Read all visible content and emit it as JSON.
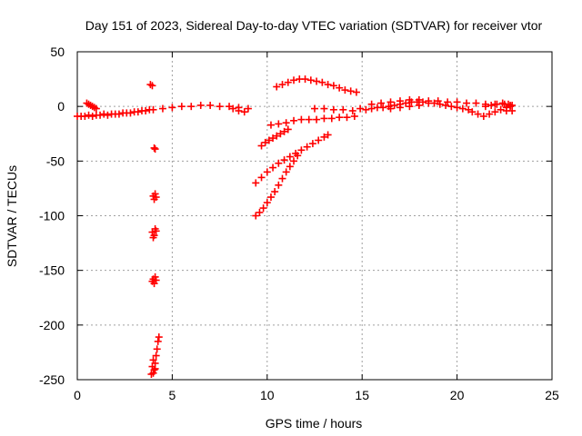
{
  "chart_data": {
    "type": "scatter",
    "title": "Day 151 of 2023, Sidereal Day-to-day VTEC variation (SDTVAR) for receiver vtor",
    "xlabel": "GPS time / hours",
    "ylabel": "SDTVAR / TECUs",
    "xlim": [
      0,
      25
    ],
    "ylim": [
      -250,
      50
    ],
    "xticks": [
      0,
      5,
      10,
      15,
      20,
      25
    ],
    "yticks": [
      -250,
      -200,
      -150,
      -100,
      -50,
      0,
      50
    ],
    "grid": true,
    "marker": "+",
    "series": [
      {
        "name": "SDTVAR",
        "color": "#ff0000",
        "points": [
          [
            0.0,
            -9
          ],
          [
            0.2,
            -9
          ],
          [
            0.4,
            -9
          ],
          [
            0.6,
            -8
          ],
          [
            0.8,
            -9
          ],
          [
            1.0,
            -8
          ],
          [
            1.2,
            -8
          ],
          [
            1.4,
            -7
          ],
          [
            1.6,
            -8
          ],
          [
            1.8,
            -7
          ],
          [
            2.0,
            -7
          ],
          [
            2.2,
            -7
          ],
          [
            2.4,
            -6
          ],
          [
            2.6,
            -6
          ],
          [
            2.8,
            -6
          ],
          [
            3.0,
            -5
          ],
          [
            3.2,
            -5
          ],
          [
            3.4,
            -4
          ],
          [
            3.6,
            -4
          ],
          [
            3.8,
            -3
          ],
          [
            4.0,
            -3
          ],
          [
            0.5,
            3
          ],
          [
            0.6,
            2
          ],
          [
            0.7,
            1
          ],
          [
            0.8,
            0
          ],
          [
            0.9,
            -1
          ],
          [
            1.0,
            -2
          ],
          [
            3.85,
            20
          ],
          [
            3.95,
            19
          ],
          [
            4.05,
            -38
          ],
          [
            4.1,
            -39
          ],
          [
            4.0,
            -82
          ],
          [
            4.05,
            -85
          ],
          [
            4.1,
            -80
          ],
          [
            4.15,
            -83
          ],
          [
            3.95,
            -115
          ],
          [
            4.0,
            -120
          ],
          [
            4.05,
            -118
          ],
          [
            4.1,
            -112
          ],
          [
            4.15,
            -114
          ],
          [
            3.95,
            -160
          ],
          [
            4.0,
            -158
          ],
          [
            4.05,
            -162
          ],
          [
            4.1,
            -156
          ],
          [
            4.15,
            -159
          ],
          [
            3.9,
            -245
          ],
          [
            3.95,
            -238
          ],
          [
            4.0,
            -232
          ],
          [
            4.05,
            -241
          ],
          [
            4.1,
            -235
          ],
          [
            4.15,
            -228
          ],
          [
            4.2,
            -222
          ],
          [
            4.25,
            -215
          ],
          [
            4.3,
            -211
          ],
          [
            4.0,
            -244
          ],
          [
            4.1,
            -240
          ],
          [
            4.5,
            -2
          ],
          [
            5.0,
            -1
          ],
          [
            5.5,
            0
          ],
          [
            6.0,
            0
          ],
          [
            6.5,
            1
          ],
          [
            7.0,
            1
          ],
          [
            7.5,
            0
          ],
          [
            8.0,
            0
          ],
          [
            8.5,
            -1
          ],
          [
            9.0,
            -2
          ],
          [
            8.2,
            -2
          ],
          [
            8.5,
            -4
          ],
          [
            8.8,
            -5
          ],
          [
            9.4,
            -100
          ],
          [
            9.6,
            -97
          ],
          [
            9.8,
            -93
          ],
          [
            10.0,
            -88
          ],
          [
            10.2,
            -83
          ],
          [
            10.4,
            -78
          ],
          [
            10.6,
            -72
          ],
          [
            10.8,
            -66
          ],
          [
            11.0,
            -60
          ],
          [
            11.2,
            -55
          ],
          [
            11.4,
            -50
          ],
          [
            11.6,
            -45
          ],
          [
            9.4,
            -70
          ],
          [
            9.7,
            -65
          ],
          [
            10.0,
            -60
          ],
          [
            10.3,
            -56
          ],
          [
            10.6,
            -52
          ],
          [
            10.9,
            -49
          ],
          [
            11.2,
            -46
          ],
          [
            11.5,
            -43
          ],
          [
            11.8,
            -40
          ],
          [
            12.1,
            -37
          ],
          [
            12.4,
            -34
          ],
          [
            12.7,
            -31
          ],
          [
            13.0,
            -28
          ],
          [
            13.2,
            -26
          ],
          [
            9.7,
            -36
          ],
          [
            9.9,
            -33
          ],
          [
            10.1,
            -31
          ],
          [
            10.3,
            -29
          ],
          [
            10.5,
            -27
          ],
          [
            10.7,
            -25
          ],
          [
            10.9,
            -23
          ],
          [
            11.1,
            -21
          ],
          [
            10.2,
            -17
          ],
          [
            10.6,
            -16
          ],
          [
            11.0,
            -15
          ],
          [
            11.4,
            -13
          ],
          [
            11.8,
            -12
          ],
          [
            12.2,
            -12
          ],
          [
            12.6,
            -12
          ],
          [
            13.0,
            -11
          ],
          [
            13.4,
            -11
          ],
          [
            13.8,
            -10
          ],
          [
            14.2,
            -10
          ],
          [
            14.6,
            -9
          ],
          [
            10.5,
            18
          ],
          [
            10.8,
            20
          ],
          [
            11.1,
            22
          ],
          [
            11.4,
            24
          ],
          [
            11.7,
            25
          ],
          [
            12.0,
            25
          ],
          [
            12.3,
            24
          ],
          [
            12.6,
            23
          ],
          [
            12.9,
            22
          ],
          [
            13.2,
            20
          ],
          [
            13.5,
            19
          ],
          [
            13.8,
            17
          ],
          [
            14.1,
            15
          ],
          [
            14.4,
            14
          ],
          [
            14.7,
            13
          ],
          [
            12.5,
            -2
          ],
          [
            13.0,
            -2
          ],
          [
            13.5,
            -3
          ],
          [
            14.0,
            -3
          ],
          [
            14.5,
            -4
          ],
          [
            14.9,
            -2
          ],
          [
            15.2,
            -3
          ],
          [
            15.5,
            -2
          ],
          [
            15.8,
            -1
          ],
          [
            16.1,
            -1
          ],
          [
            16.4,
            0
          ],
          [
            16.7,
            1
          ],
          [
            17.0,
            2
          ],
          [
            17.3,
            3
          ],
          [
            17.6,
            4
          ],
          [
            17.9,
            4
          ],
          [
            18.2,
            4
          ],
          [
            18.5,
            3
          ],
          [
            18.8,
            3
          ],
          [
            19.1,
            2
          ],
          [
            19.4,
            1
          ],
          [
            19.7,
            0
          ],
          [
            20.0,
            -1
          ],
          [
            20.3,
            -2
          ],
          [
            20.6,
            -3
          ],
          [
            15.5,
            2
          ],
          [
            16.0,
            3
          ],
          [
            16.5,
            4
          ],
          [
            17.0,
            5
          ],
          [
            17.5,
            6
          ],
          [
            18.0,
            6
          ],
          [
            18.5,
            5
          ],
          [
            19.0,
            5
          ],
          [
            19.5,
            4
          ],
          [
            20.0,
            4
          ],
          [
            20.5,
            3
          ],
          [
            21.0,
            3
          ],
          [
            21.5,
            2
          ],
          [
            22.0,
            2
          ],
          [
            22.5,
            2
          ],
          [
            22.8,
            1
          ],
          [
            16.5,
            -2
          ],
          [
            17.0,
            -1
          ],
          [
            17.5,
            0
          ],
          [
            18.0,
            1
          ],
          [
            20.8,
            -5
          ],
          [
            21.1,
            -7
          ],
          [
            21.4,
            -9
          ],
          [
            21.7,
            -7
          ],
          [
            22.0,
            -5
          ],
          [
            22.3,
            -3
          ],
          [
            22.6,
            -1
          ],
          [
            22.8,
            0
          ],
          [
            21.5,
            0
          ],
          [
            21.8,
            1
          ],
          [
            22.1,
            2
          ],
          [
            22.4,
            3
          ],
          [
            22.7,
            2
          ],
          [
            22.9,
            1
          ],
          [
            22.9,
            -4
          ],
          [
            22.6,
            -4
          ]
        ]
      }
    ]
  }
}
